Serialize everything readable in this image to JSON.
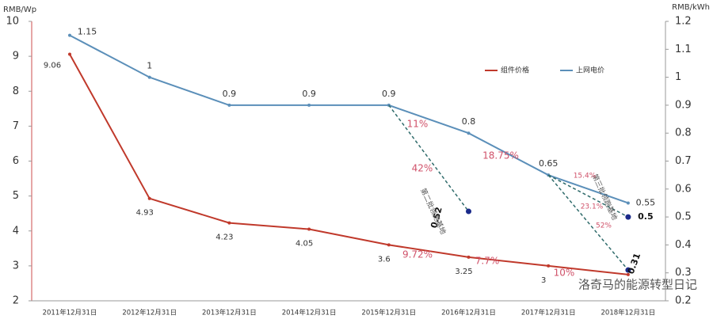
{
  "chart_data": {
    "type": "line",
    "y_label": "RMB/Wp",
    "y2_label": "RMB/kWh",
    "categories": [
      "2011年12月31日",
      "2012年12月31日",
      "2013年12月31日",
      "2014年12月31日",
      "2015年12月31日",
      "2016年12月31日",
      "2017年12月31日",
      "2018年12月31日"
    ],
    "ylim": [
      2,
      10
    ],
    "yticks": [
      2,
      3,
      4,
      5,
      6,
      7,
      8,
      9,
      10
    ],
    "y2lim": [
      0.2,
      1.2
    ],
    "y2ticks": [
      0.2,
      0.3,
      0.4,
      0.5,
      0.6,
      0.7,
      0.8,
      0.9,
      1,
      1.1,
      1.2
    ],
    "legend": "upper right",
    "series": [
      {
        "name": "组件价格",
        "color": "#c0392b",
        "values": [
          9.06,
          4.93,
          4.23,
          4.05,
          3.6,
          3.25,
          3,
          2.75
        ],
        "value_labels": [
          "9.06",
          "4.93",
          "4.23",
          "4.05",
          "3.6",
          "3.25",
          "3",
          null
        ]
      },
      {
        "name": "上网电价",
        "color": "#5b8fb9",
        "axis": "y2",
        "values": [
          1.15,
          1,
          0.9,
          0.9,
          0.9,
          0.8,
          0.65,
          0.55
        ]
      }
    ],
    "benchmarks": [
      {
        "label": "第二批领跑基地",
        "color": "#2f6b6b",
        "axis": "y2",
        "values": [
          null,
          null,
          null,
          null,
          0.9,
          0.52,
          null,
          null
        ]
      },
      {
        "label": "第三批领跑基地",
        "color": "#2f6b6b",
        "axis": "y2",
        "values": [
          null,
          null,
          null,
          null,
          null,
          null,
          0.65,
          0.5
        ]
      },
      {
        "color": "#2f6b6b",
        "axis": "y2",
        "values": [
          null,
          null,
          null,
          null,
          null,
          null,
          0.65,
          0.31
        ]
      }
    ],
    "annotations": [
      "11%",
      "42%",
      "18.75%",
      "15.4%",
      "23.1%",
      "52%",
      "9.72%",
      "7.7%",
      "10%"
    ],
    "watermark": "洛奇马的能源转型日记"
  }
}
